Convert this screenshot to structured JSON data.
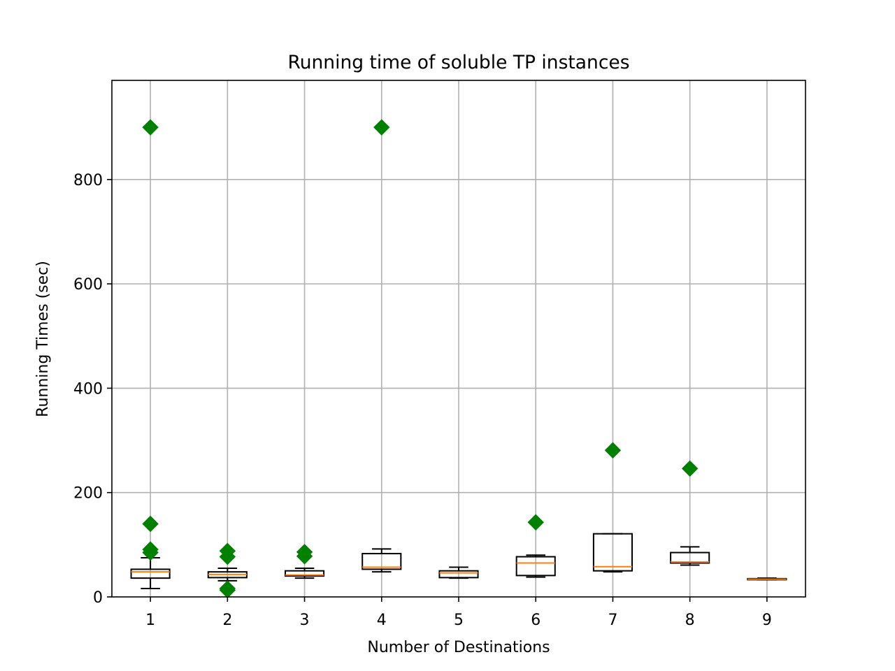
{
  "chart_data": {
    "type": "box",
    "title": "Running time of soluble TP instances",
    "xlabel": "Number of Destinations",
    "ylabel": "Running Times (sec)",
    "categories": [
      "1",
      "2",
      "3",
      "4",
      "5",
      "6",
      "7",
      "8",
      "9"
    ],
    "xlim": [
      0.5,
      9.5
    ],
    "ylim": [
      0,
      990
    ],
    "yticks": [
      0,
      200,
      400,
      600,
      800
    ],
    "grid": true,
    "boxes": [
      {
        "category": "1",
        "whisker_low": 16,
        "q1": 36,
        "median": 48,
        "q3": 53,
        "whisker_high": 75,
        "outliers": [
          900,
          140,
          91,
          85
        ]
      },
      {
        "category": "2",
        "whisker_low": 31,
        "q1": 37,
        "median": 43,
        "q3": 48,
        "whisker_high": 55,
        "outliers": [
          88,
          77,
          16,
          13
        ]
      },
      {
        "category": "3",
        "whisker_low": 36,
        "q1": 40,
        "median": 42,
        "q3": 50,
        "whisker_high": 55,
        "outliers": [
          86,
          78
        ]
      },
      {
        "category": "4",
        "whisker_low": 48,
        "q1": 53,
        "median": 57,
        "q3": 83,
        "whisker_high": 92,
        "outliers": [
          900
        ]
      },
      {
        "category": "5",
        "whisker_low": 36,
        "q1": 37,
        "median": 46,
        "q3": 50,
        "whisker_high": 57,
        "outliers": []
      },
      {
        "category": "6",
        "whisker_low": 38,
        "q1": 41,
        "median": 65,
        "q3": 77,
        "whisker_high": 80,
        "outliers": [
          143
        ]
      },
      {
        "category": "7",
        "whisker_low": 48,
        "q1": 50,
        "median": 58,
        "q3": 121,
        "whisker_high": 121,
        "outliers": [
          281
        ]
      },
      {
        "category": "8",
        "whisker_low": 61,
        "q1": 65,
        "median": 67,
        "q3": 85,
        "whisker_high": 96,
        "outliers": [
          246
        ]
      },
      {
        "category": "9",
        "whisker_low": 33,
        "q1": 33,
        "median": 34,
        "q3": 35,
        "whisker_high": 36,
        "outliers": []
      }
    ],
    "colors": {
      "box": "#000000",
      "median": "#ff7f0e",
      "outlier": "#008000",
      "grid": "#b0b0b0"
    }
  }
}
